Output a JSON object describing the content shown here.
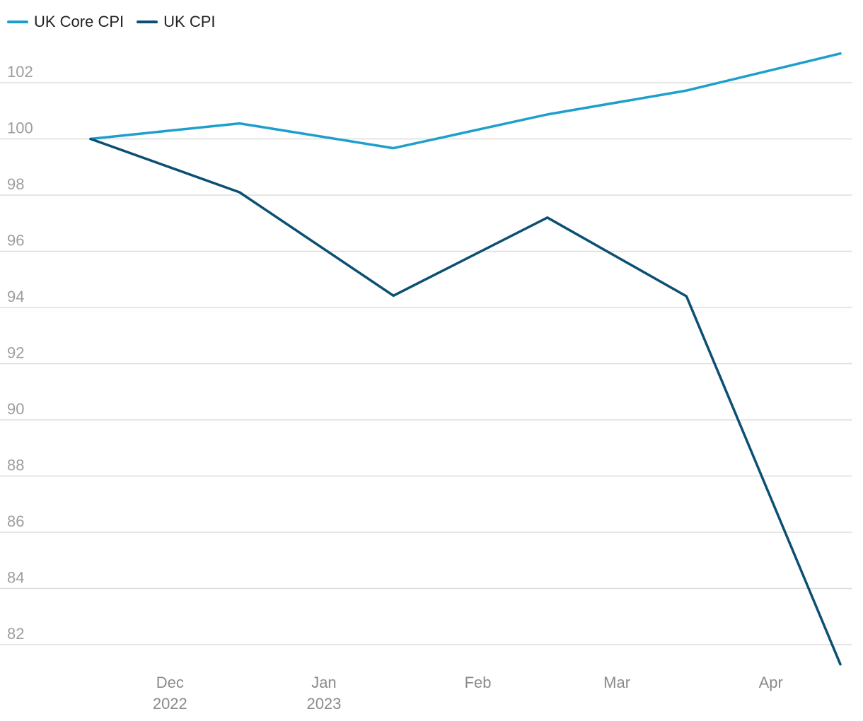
{
  "colors": {
    "core": "#1d9fcc",
    "cpi": "#0b4f73",
    "grid": "#dddddd",
    "tick": "#9e9e9e"
  },
  "chart_data": {
    "type": "line",
    "title": "",
    "xlabel": "",
    "ylabel": "",
    "ylim": [
      81,
      103.5
    ],
    "yticks": [
      82,
      84,
      86,
      88,
      90,
      92,
      94,
      96,
      98,
      100,
      102
    ],
    "grid": true,
    "legend_position": "top-left",
    "x_tick_labels": [
      {
        "month": "Dec",
        "year": "2022"
      },
      {
        "month": "Jan",
        "year": "2023"
      },
      {
        "month": "Feb",
        "year": ""
      },
      {
        "month": "Mar",
        "year": ""
      },
      {
        "month": "Apr",
        "year": ""
      }
    ],
    "x": [
      "2022-11-15",
      "2022-12-15",
      "2023-01-15",
      "2023-02-15",
      "2023-03-15",
      "2023-04-15"
    ],
    "series": [
      {
        "name": "UK Core CPI",
        "color": "#1d9fcc",
        "values": [
          100.0,
          100.55,
          99.67,
          100.87,
          101.72,
          103.04
        ]
      },
      {
        "name": "UK CPI",
        "color": "#0b4f73",
        "values": [
          100.0,
          98.1,
          94.42,
          97.2,
          94.4,
          81.3
        ]
      }
    ]
  }
}
